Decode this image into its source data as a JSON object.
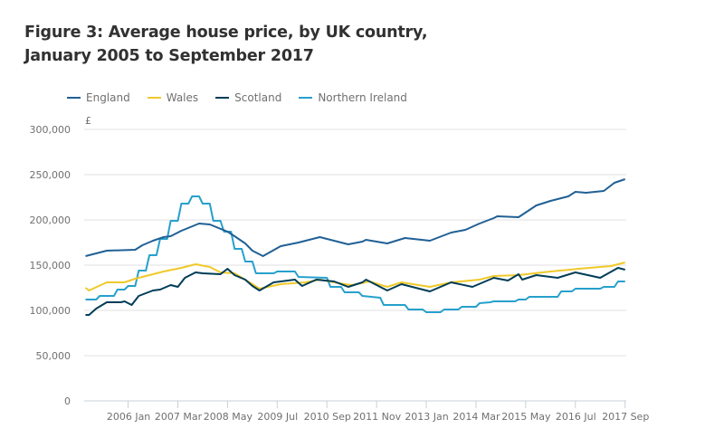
{
  "chart_data": {
    "type": "line",
    "title": "Figure 3: Average house price, by UK country, January 2005 to September 2017",
    "ylabel": "£",
    "xlabel": "",
    "x_unit": "months since 2005 Jan",
    "xlim": [
      0,
      152
    ],
    "ylim": [
      0,
      300000
    ],
    "yticks": [
      0,
      50000,
      100000,
      150000,
      200000,
      250000,
      300000
    ],
    "ytick_labels": [
      "0",
      "50,000",
      "100,000",
      "150,000",
      "200,000",
      "250,000",
      "300,000"
    ],
    "xticks": [
      12,
      26,
      40,
      54,
      68,
      82,
      96,
      110,
      124,
      138,
      152
    ],
    "xtick_labels": [
      "2006 Jan",
      "2007 Mar",
      "2008 May",
      "2009 Jul",
      "2010 Sep",
      "2011 Nov",
      "2013 Jan",
      "2014 Mar",
      "2015 May",
      "2016 Jul",
      "2017 Sep"
    ],
    "grid": true,
    "legend_position": "top-left",
    "series": [
      {
        "name": "England",
        "color": "#206095",
        "points": [
          [
            0,
            160000
          ],
          [
            6,
            166000
          ],
          [
            14,
            167000
          ],
          [
            16,
            172000
          ],
          [
            19,
            177000
          ],
          [
            22,
            181000
          ],
          [
            24,
            182000
          ],
          [
            27,
            188000
          ],
          [
            32,
            196000
          ],
          [
            35,
            195000
          ],
          [
            40,
            187000
          ],
          [
            42,
            182000
          ],
          [
            45,
            174000
          ],
          [
            47,
            166000
          ],
          [
            50,
            160000
          ],
          [
            55,
            171000
          ],
          [
            60,
            175000
          ],
          [
            66,
            181000
          ],
          [
            70,
            177000
          ],
          [
            74,
            173000
          ],
          [
            78,
            176000
          ],
          [
            79,
            178000
          ],
          [
            85,
            174000
          ],
          [
            90,
            180000
          ],
          [
            97,
            177000
          ],
          [
            103,
            186000
          ],
          [
            107,
            189000
          ],
          [
            111,
            196000
          ],
          [
            115,
            202000
          ],
          [
            116,
            204000
          ],
          [
            122,
            203000
          ],
          [
            127,
            216000
          ],
          [
            131,
            221000
          ],
          [
            136,
            226000
          ],
          [
            138,
            231000
          ],
          [
            141,
            230000
          ],
          [
            146,
            232000
          ],
          [
            149,
            241000
          ],
          [
            152,
            245000
          ]
        ]
      },
      {
        "name": "Wales",
        "color": "#f0c929",
        "points": [
          [
            0,
            125000
          ],
          [
            1,
            122000
          ],
          [
            6,
            131000
          ],
          [
            11,
            131000
          ],
          [
            14,
            135000
          ],
          [
            18,
            139000
          ],
          [
            22,
            143000
          ],
          [
            27,
            147000
          ],
          [
            31,
            151000
          ],
          [
            35,
            148000
          ],
          [
            38,
            142000
          ],
          [
            42,
            141000
          ],
          [
            47,
            129000
          ],
          [
            49,
            124000
          ],
          [
            55,
            129000
          ],
          [
            62,
            131000
          ],
          [
            66,
            134000
          ],
          [
            73,
            129000
          ],
          [
            75,
            128000
          ],
          [
            80,
            132000
          ],
          [
            85,
            126000
          ],
          [
            89,
            131000
          ],
          [
            97,
            126000
          ],
          [
            103,
            131000
          ],
          [
            111,
            134000
          ],
          [
            115,
            138000
          ],
          [
            122,
            139000
          ],
          [
            131,
            143000
          ],
          [
            139,
            146000
          ],
          [
            148,
            149000
          ],
          [
            152,
            153000
          ]
        ]
      },
      {
        "name": "Scotland",
        "color": "#003c57",
        "points": [
          [
            0,
            95000
          ],
          [
            1,
            95000
          ],
          [
            3,
            102000
          ],
          [
            6,
            109000
          ],
          [
            10,
            109000
          ],
          [
            11,
            110000
          ],
          [
            13,
            106000
          ],
          [
            15,
            116000
          ],
          [
            19,
            122000
          ],
          [
            21,
            123000
          ],
          [
            24,
            128000
          ],
          [
            26,
            126000
          ],
          [
            28,
            136000
          ],
          [
            31,
            142000
          ],
          [
            33,
            141000
          ],
          [
            38,
            140000
          ],
          [
            40,
            146000
          ],
          [
            42,
            139000
          ],
          [
            45,
            134000
          ],
          [
            47,
            127000
          ],
          [
            49,
            122000
          ],
          [
            53,
            131000
          ],
          [
            59,
            134000
          ],
          [
            61,
            127000
          ],
          [
            65,
            134000
          ],
          [
            70,
            132000
          ],
          [
            74,
            126000
          ],
          [
            78,
            131000
          ],
          [
            79,
            134000
          ],
          [
            85,
            122000
          ],
          [
            89,
            129000
          ],
          [
            97,
            121000
          ],
          [
            103,
            131000
          ],
          [
            109,
            126000
          ],
          [
            115,
            136000
          ],
          [
            119,
            133000
          ],
          [
            122,
            140000
          ],
          [
            123,
            134000
          ],
          [
            127,
            139000
          ],
          [
            133,
            136000
          ],
          [
            138,
            142000
          ],
          [
            145,
            136000
          ],
          [
            150,
            147000
          ],
          [
            152,
            145000
          ]
        ]
      },
      {
        "name": "Northern Ireland",
        "color": "#27a0cc",
        "step": true,
        "points": [
          [
            0,
            112000
          ],
          [
            3,
            112000
          ],
          [
            4,
            116000
          ],
          [
            8,
            116000
          ],
          [
            9,
            123000
          ],
          [
            11,
            123000
          ],
          [
            12,
            127000
          ],
          [
            14,
            127000
          ],
          [
            15,
            144000
          ],
          [
            17,
            144000
          ],
          [
            18,
            161000
          ],
          [
            20,
            161000
          ],
          [
            21,
            179000
          ],
          [
            23,
            179000
          ],
          [
            24,
            199000
          ],
          [
            26,
            199000
          ],
          [
            27,
            218000
          ],
          [
            29,
            218000
          ],
          [
            30,
            226000
          ],
          [
            32,
            226000
          ],
          [
            33,
            218000
          ],
          [
            35,
            218000
          ],
          [
            36,
            199000
          ],
          [
            38,
            199000
          ],
          [
            39,
            187000
          ],
          [
            41,
            187000
          ],
          [
            42,
            168000
          ],
          [
            44,
            168000
          ],
          [
            45,
            154000
          ],
          [
            47,
            154000
          ],
          [
            48,
            141000
          ],
          [
            53,
            141000
          ],
          [
            54,
            143000
          ],
          [
            59,
            143000
          ],
          [
            60,
            137000
          ],
          [
            68,
            136000
          ],
          [
            69,
            126000
          ],
          [
            72,
            126000
          ],
          [
            73,
            120000
          ],
          [
            77,
            120000
          ],
          [
            78,
            116000
          ],
          [
            83,
            114000
          ],
          [
            84,
            106000
          ],
          [
            90,
            106000
          ],
          [
            91,
            101000
          ],
          [
            95,
            101000
          ],
          [
            96,
            98000
          ],
          [
            100,
            98000
          ],
          [
            101,
            101000
          ],
          [
            105,
            101000
          ],
          [
            106,
            104000
          ],
          [
            110,
            104000
          ],
          [
            111,
            108000
          ],
          [
            114,
            109000
          ],
          [
            115,
            110000
          ],
          [
            121,
            110000
          ],
          [
            122,
            112000
          ],
          [
            124,
            112000
          ],
          [
            125,
            115000
          ],
          [
            133,
            115000
          ],
          [
            134,
            121000
          ],
          [
            137,
            121000
          ],
          [
            138,
            124000
          ],
          [
            145,
            124000
          ],
          [
            146,
            126000
          ],
          [
            149,
            126000
          ],
          [
            150,
            132000
          ],
          [
            152,
            132000
          ]
        ]
      }
    ]
  }
}
